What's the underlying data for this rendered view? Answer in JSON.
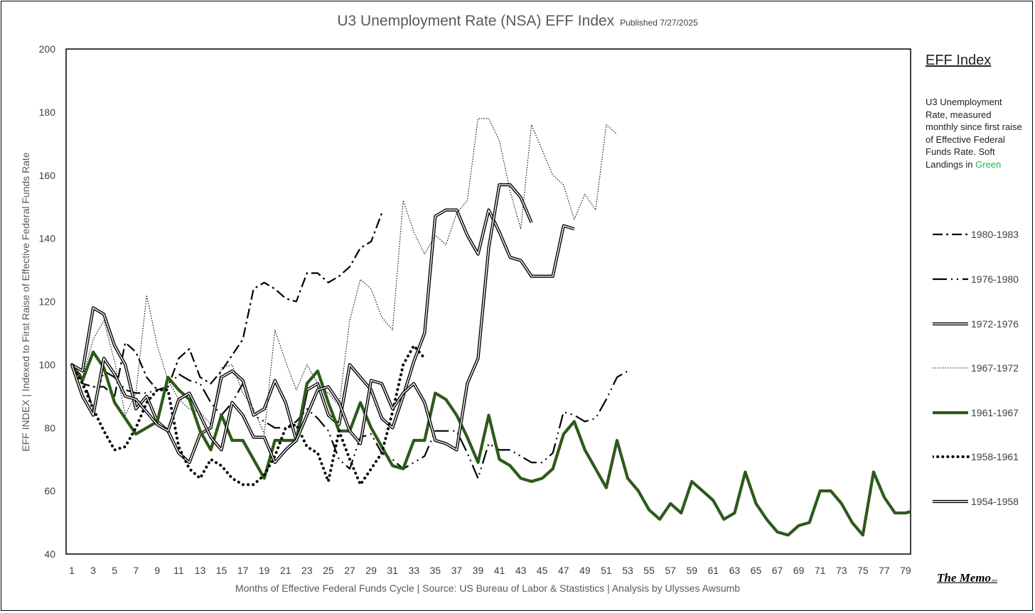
{
  "header": {
    "title": "U3 Unemployment Rate (NSA) EFF Index",
    "published": "Published 7/27/2025"
  },
  "axes": {
    "ylabel": "EFF INDEX | Indexed to First Raise of Effective Federal Funds Rate",
    "xlabel": "Months of Effective Federal Funds Cycle  |  Source: US Bureau of Labor & Stastistics  |  Analysis by Ulysses Awsumb"
  },
  "legend": {
    "title": "EFF Index",
    "desc": "U3 Unemployment Rate, measured monthly since first raise of Effective Federal Funds Rate. Soft Landings in ",
    "desc_green": "Green"
  },
  "branding": {
    "memo": "The Memo",
    "net": ".net"
  },
  "colors": {
    "soft_landing": "#2d5a1b",
    "default": "#000000"
  },
  "chart_data": {
    "type": "line",
    "ylim": [
      40,
      200
    ],
    "xlim": [
      1,
      79
    ],
    "yticks": [
      40,
      60,
      80,
      100,
      120,
      140,
      160,
      180,
      200
    ],
    "xticks": [
      1,
      3,
      5,
      7,
      9,
      11,
      13,
      15,
      17,
      19,
      21,
      23,
      25,
      27,
      29,
      31,
      33,
      35,
      37,
      39,
      41,
      43,
      45,
      47,
      49,
      51,
      53,
      55,
      57,
      59,
      61,
      63,
      65,
      67,
      69,
      71,
      73,
      75,
      77,
      79
    ],
    "grid": false,
    "legend_position": "right",
    "series": [
      {
        "name": "1980-1983",
        "style": "dashdot",
        "color": "#000000",
        "values": [
          100,
          94,
          93,
          93,
          90,
          107,
          104,
          96,
          92,
          93,
          102,
          105,
          96,
          94,
          98,
          103,
          108,
          124,
          126,
          124,
          121,
          120,
          129,
          129,
          126,
          128,
          131,
          137,
          139,
          148
        ]
      },
      {
        "name": "1976-1980",
        "style": "longdashdot",
        "color": "#000000",
        "values": [
          100,
          96,
          86,
          98,
          96,
          92,
          91,
          91,
          92,
          93,
          97,
          95,
          94,
          88,
          84,
          88,
          94,
          84,
          82,
          80,
          80,
          82,
          86,
          83,
          79,
          70,
          67,
          77,
          78,
          72,
          70,
          67,
          69,
          71,
          79,
          79,
          79,
          72,
          64,
          75,
          73,
          73,
          71,
          69,
          69,
          72,
          85,
          84,
          82,
          83,
          89,
          96,
          98
        ]
      },
      {
        "name": "1972-1976",
        "style": "double",
        "color": "#000000",
        "values": [
          100,
          98,
          118,
          116,
          106,
          100,
          86,
          90,
          82,
          79,
          72,
          69,
          78,
          80,
          96,
          98,
          95,
          84,
          86,
          95,
          88,
          76,
          92,
          94,
          84,
          81,
          100,
          96,
          92,
          83,
          80,
          90,
          101,
          110,
          147,
          149,
          149,
          141,
          135,
          149,
          142,
          134,
          133,
          128,
          128,
          128,
          144,
          143
        ]
      },
      {
        "name": "1967-1972",
        "style": "dotted",
        "color": "#000000",
        "values": [
          100,
          96,
          108,
          114,
          101,
          84,
          91,
          122,
          106,
          95,
          89,
          86,
          85,
          81,
          99,
          100,
          91,
          86,
          78,
          111,
          101,
          92,
          100,
          94,
          91,
          87,
          114,
          127,
          124,
          115,
          111,
          152,
          142,
          135,
          141,
          138,
          148,
          152,
          178,
          178,
          171,
          155,
          143,
          176,
          168,
          160,
          157,
          146,
          154,
          149,
          176,
          173
        ]
      },
      {
        "name": "1961-1967",
        "style": "thick",
        "color": "#2d5a1b",
        "values": [
          100,
          95,
          104,
          99,
          88,
          83,
          78,
          80,
          82,
          96,
          92,
          89,
          79,
          73,
          84,
          76,
          76,
          70,
          64,
          76,
          76,
          76,
          94,
          98,
          88,
          79,
          79,
          88,
          80,
          74,
          68,
          67,
          76,
          76,
          91,
          89,
          84,
          77,
          69,
          84,
          70,
          68,
          64,
          63,
          64,
          67,
          78,
          82,
          73,
          67,
          61,
          76,
          64,
          60,
          54,
          51,
          56,
          53,
          63,
          60,
          57,
          51,
          53,
          66,
          56,
          51,
          47,
          46,
          49,
          50,
          60,
          60,
          56,
          50,
          46,
          66,
          58,
          53,
          53,
          54
        ]
      },
      {
        "name": "1958-1961",
        "style": "thickdotted",
        "color": "#000000",
        "values": [
          100,
          94,
          86,
          79,
          73,
          74,
          80,
          88,
          92,
          92,
          74,
          67,
          64,
          70,
          68,
          64,
          62,
          62,
          65,
          71,
          80,
          81,
          74,
          72,
          63,
          79,
          70,
          62,
          67,
          72,
          85,
          100,
          106,
          102
        ]
      },
      {
        "name": "1954-1958",
        "style": "double",
        "color": "#000000",
        "values": [
          100,
          90,
          84,
          102,
          97,
          90,
          89,
          85,
          81,
          79,
          89,
          91,
          84,
          77,
          73,
          88,
          84,
          77,
          77,
          69,
          73,
          76,
          84,
          92,
          93,
          88,
          79,
          75,
          95,
          94,
          86,
          91,
          94,
          88,
          76,
          75,
          73,
          94,
          102,
          137,
          157,
          157,
          153,
          145
        ]
      }
    ]
  }
}
